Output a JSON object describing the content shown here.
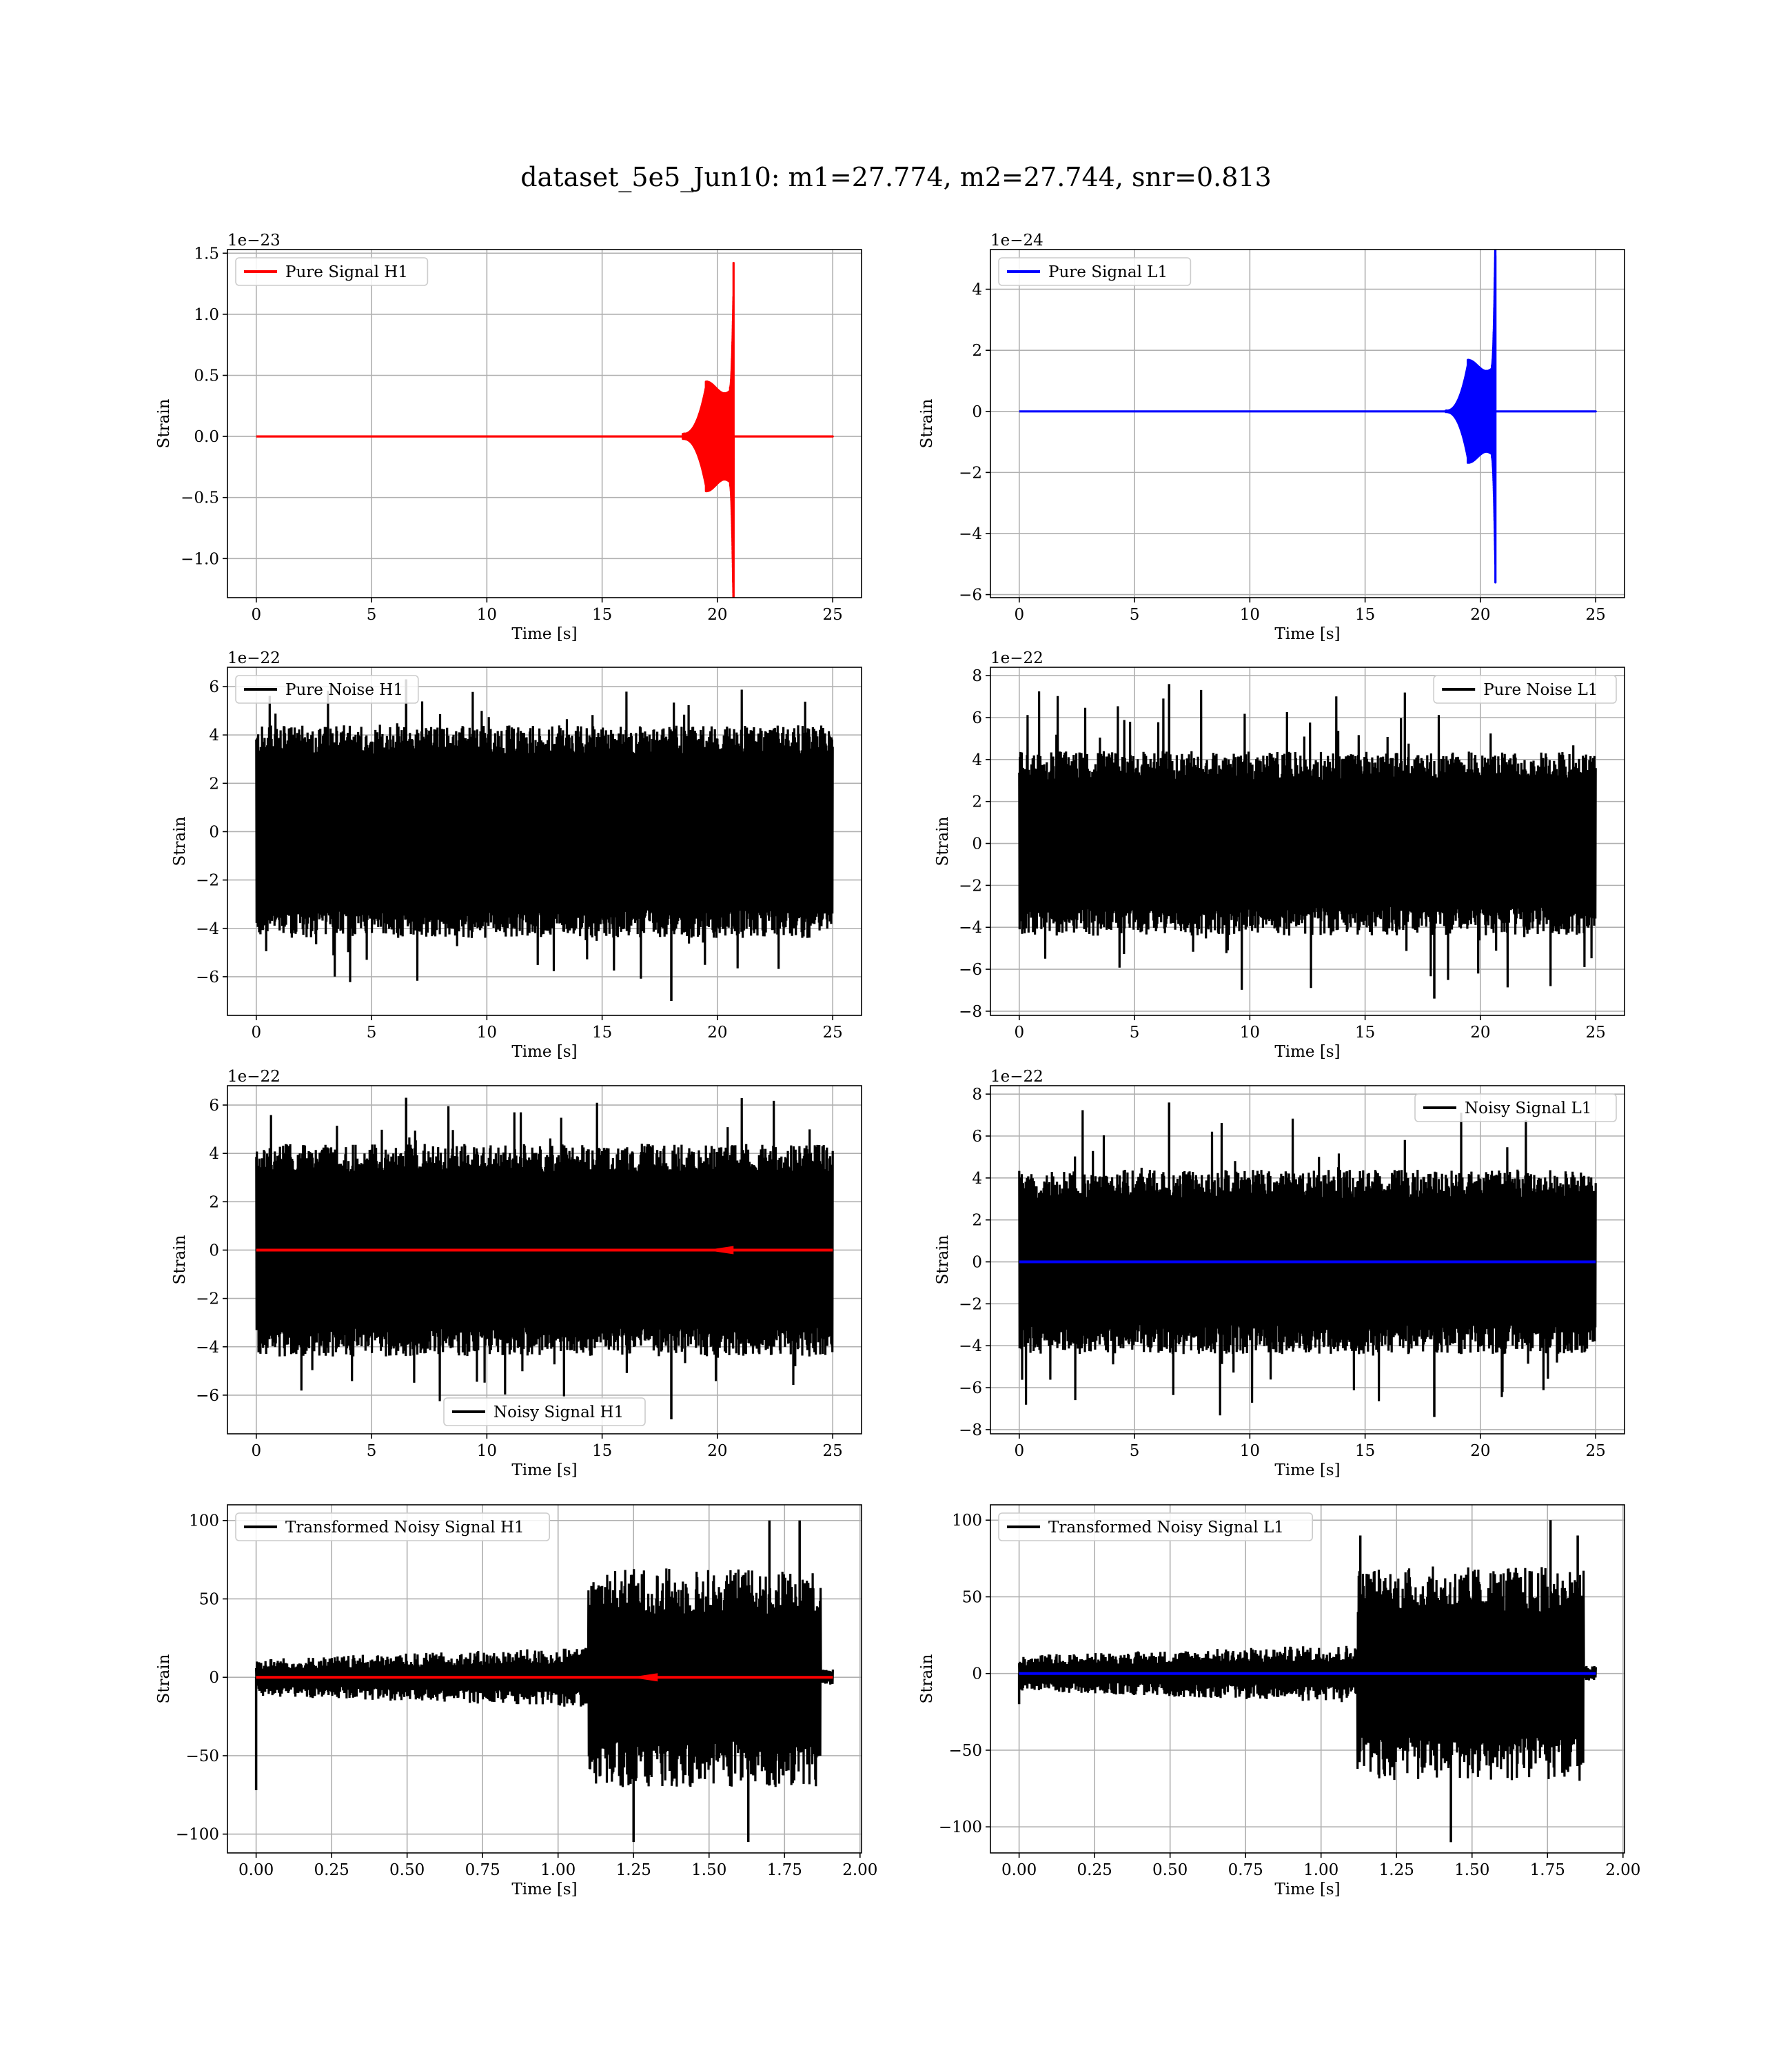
{
  "figure": {
    "suptitle": "dataset_5e5_Jun10: m1=27.774, m2=27.744, snr=0.813"
  },
  "chart_data": [
    {
      "id": "pure-signal-h1",
      "type": "line",
      "offset_text": "1e−23",
      "xlabel": "Time [s]",
      "ylabel": "Strain",
      "xlim": [
        -1.25,
        26.25
      ],
      "ylim": [
        -1.32,
        1.53
      ],
      "xticks": [
        0,
        5,
        10,
        15,
        20,
        25
      ],
      "xtick_labels": [
        "0",
        "5",
        "10",
        "15",
        "20",
        "25"
      ],
      "yticks": [
        -1.0,
        -0.5,
        0.0,
        0.5,
        1.0,
        1.5
      ],
      "ytick_labels": [
        "−1.0",
        "−0.5",
        "0.0",
        "0.5",
        "1.0",
        "1.5"
      ],
      "grid": true,
      "legend": {
        "placement": "upper left",
        "entries": [
          {
            "label": "Pure Signal H1",
            "color": "#ff0000"
          }
        ]
      },
      "series": [
        {
          "name": "Pure Signal H1",
          "color": "#ff0000",
          "kind": "chirp",
          "duration": 25,
          "merger": 20.7,
          "start": 18.5,
          "peak": 1.42,
          "trough": -1.2,
          "plateau": 0.4
        }
      ]
    },
    {
      "id": "pure-signal-l1",
      "type": "line",
      "offset_text": "1e−24",
      "xlabel": "Time [s]",
      "ylabel": "Strain",
      "xlim": [
        -1.25,
        26.25
      ],
      "ylim": [
        -6.1,
        5.3
      ],
      "xticks": [
        0,
        5,
        10,
        15,
        20,
        25
      ],
      "xtick_labels": [
        "0",
        "5",
        "10",
        "15",
        "20",
        "25"
      ],
      "yticks": [
        -6,
        -4,
        -2,
        0,
        2,
        4
      ],
      "ytick_labels": [
        "−6",
        "−4",
        "−2",
        "0",
        "2",
        "4"
      ],
      "grid": true,
      "legend": {
        "placement": "upper left",
        "entries": [
          {
            "label": "Pure Signal L1",
            "color": "#0000ff"
          }
        ]
      },
      "series": [
        {
          "name": "Pure Signal L1",
          "color": "#0000ff",
          "kind": "chirp",
          "duration": 25,
          "merger": 20.65,
          "start": 18.5,
          "peak": 5.1,
          "trough": -5.6,
          "plateau": 1.5
        }
      ]
    },
    {
      "id": "pure-noise-h1",
      "type": "line",
      "offset_text": "1e−22",
      "xlabel": "Time [s]",
      "ylabel": "Strain",
      "xlim": [
        -1.25,
        26.25
      ],
      "ylim": [
        -7.6,
        6.8
      ],
      "xticks": [
        0,
        5,
        10,
        15,
        20,
        25
      ],
      "xtick_labels": [
        "0",
        "5",
        "10",
        "15",
        "20",
        "25"
      ],
      "yticks": [
        -6,
        -4,
        -2,
        0,
        2,
        4,
        6
      ],
      "ytick_labels": [
        "−6",
        "−4",
        "−2",
        "0",
        "2",
        "4",
        "6"
      ],
      "grid": true,
      "legend": {
        "placement": "upper left",
        "entries": [
          {
            "label": "Pure Noise H1",
            "color": "#000000"
          }
        ]
      },
      "series": [
        {
          "name": "Pure Noise H1",
          "color": "#000000",
          "kind": "noise",
          "duration": 25,
          "center": 0,
          "core": 3.2,
          "env": 4.4,
          "max": 6.3,
          "min": -7.0
        }
      ]
    },
    {
      "id": "pure-noise-l1",
      "type": "line",
      "offset_text": "1e−22",
      "xlabel": "Time [s]",
      "ylabel": "Strain",
      "xlim": [
        -1.25,
        26.25
      ],
      "ylim": [
        -8.2,
        8.4
      ],
      "xticks": [
        0,
        5,
        10,
        15,
        20,
        25
      ],
      "xtick_labels": [
        "0",
        "5",
        "10",
        "15",
        "20",
        "25"
      ],
      "yticks": [
        -8,
        -6,
        -4,
        -2,
        0,
        2,
        4,
        6,
        8
      ],
      "ytick_labels": [
        "−8",
        "−6",
        "−4",
        "−2",
        "0",
        "2",
        "4",
        "6",
        "8"
      ],
      "grid": true,
      "legend": {
        "placement": "upper right",
        "entries": [
          {
            "label": "Pure Noise L1",
            "color": "#000000"
          }
        ]
      },
      "series": [
        {
          "name": "Pure Noise L1",
          "color": "#000000",
          "kind": "noise",
          "duration": 25,
          "center": 0,
          "core": 3.0,
          "env": 4.4,
          "max": 7.6,
          "min": -7.4
        }
      ]
    },
    {
      "id": "noisy-signal-h1",
      "type": "line",
      "offset_text": "1e−22",
      "xlabel": "Time [s]",
      "ylabel": "Strain",
      "xlim": [
        -1.25,
        26.25
      ],
      "ylim": [
        -7.6,
        6.8
      ],
      "xticks": [
        0,
        5,
        10,
        15,
        20,
        25
      ],
      "xtick_labels": [
        "0",
        "5",
        "10",
        "15",
        "20",
        "25"
      ],
      "yticks": [
        -6,
        -4,
        -2,
        0,
        2,
        4,
        6
      ],
      "ytick_labels": [
        "−6",
        "−4",
        "−2",
        "0",
        "2",
        "4",
        "6"
      ],
      "grid": true,
      "legend": {
        "placement": "lower center",
        "entries": [
          {
            "label": "Noisy Signal H1",
            "color": "#000000"
          }
        ]
      },
      "series": [
        {
          "name": "Noisy Signal H1",
          "color": "#000000",
          "kind": "noise",
          "duration": 25,
          "center": 0,
          "core": 3.2,
          "env": 4.4,
          "max": 6.3,
          "min": -7.0
        },
        {
          "color": "#ff0000",
          "kind": "flat",
          "duration": 25,
          "value": 0,
          "blip": 20.7
        }
      ]
    },
    {
      "id": "noisy-signal-l1",
      "type": "line",
      "offset_text": "1e−22",
      "xlabel": "Time [s]",
      "ylabel": "Strain",
      "xlim": [
        -1.25,
        26.25
      ],
      "ylim": [
        -8.2,
        8.4
      ],
      "xticks": [
        0,
        5,
        10,
        15,
        20,
        25
      ],
      "xtick_labels": [
        "0",
        "5",
        "10",
        "15",
        "20",
        "25"
      ],
      "yticks": [
        -8,
        -6,
        -4,
        -2,
        0,
        2,
        4,
        6,
        8
      ],
      "ytick_labels": [
        "−8",
        "−6",
        "−4",
        "−2",
        "0",
        "2",
        "4",
        "6",
        "8"
      ],
      "grid": true,
      "legend": {
        "placement": "upper right",
        "entries": [
          {
            "label": "Noisy Signal L1",
            "color": "#000000"
          }
        ]
      },
      "series": [
        {
          "name": "Noisy Signal L1",
          "color": "#000000",
          "kind": "noise",
          "duration": 25,
          "center": 0,
          "core": 3.0,
          "env": 4.4,
          "max": 7.6,
          "min": -7.4
        },
        {
          "color": "#0000ff",
          "kind": "flat",
          "duration": 25,
          "value": 0,
          "blip": null
        }
      ]
    },
    {
      "id": "transformed-noisy-signal-h1",
      "type": "line",
      "offset_text": "",
      "xlabel": "Time [s]",
      "ylabel": "Strain",
      "xlim": [
        -0.095,
        2.005
      ],
      "ylim": [
        -112,
        110
      ],
      "xticks": [
        0.0,
        0.25,
        0.5,
        0.75,
        1.0,
        1.25,
        1.5,
        1.75,
        2.0
      ],
      "xtick_labels": [
        "0.00",
        "0.25",
        "0.50",
        "0.75",
        "1.00",
        "1.25",
        "1.50",
        "1.75",
        "2.00"
      ],
      "yticks": [
        -100,
        -50,
        0,
        50,
        100
      ],
      "ytick_labels": [
        "−100",
        "−50",
        "0",
        "50",
        "100"
      ],
      "grid": true,
      "legend": {
        "placement": "upper left",
        "entries": [
          {
            "label": "Transformed Noisy Signal H1",
            "color": "#000000"
          }
        ]
      },
      "series": [
        {
          "name": "Transformed Noisy Signal H1",
          "color": "#000000",
          "kind": "transformed",
          "duration": 1.91,
          "split": 1.1,
          "cutoff": 1.87,
          "low_core": 5,
          "low_env": 12,
          "high_core": 40,
          "high_env": 70,
          "spikes": [
            [
              0.0,
              -72
            ],
            [
              1.25,
              -105
            ],
            [
              1.63,
              -105
            ],
            [
              1.7,
              100
            ],
            [
              1.8,
              100
            ]
          ]
        },
        {
          "color": "#ff0000",
          "kind": "flat",
          "duration": 1.91,
          "value": 0,
          "blip": 1.33
        }
      ]
    },
    {
      "id": "transformed-noisy-signal-l1",
      "type": "line",
      "offset_text": "",
      "xlabel": "Time [s]",
      "ylabel": "Strain",
      "xlim": [
        -0.095,
        2.005
      ],
      "ylim": [
        -117,
        110
      ],
      "xticks": [
        0.0,
        0.25,
        0.5,
        0.75,
        1.0,
        1.25,
        1.5,
        1.75,
        2.0
      ],
      "xtick_labels": [
        "0.00",
        "0.25",
        "0.50",
        "0.75",
        "1.00",
        "1.25",
        "1.50",
        "1.75",
        "2.00"
      ],
      "yticks": [
        -100,
        -50,
        0,
        50,
        100
      ],
      "ytick_labels": [
        "−100",
        "−50",
        "0",
        "50",
        "100"
      ],
      "grid": true,
      "legend": {
        "placement": "upper left",
        "entries": [
          {
            "label": "Transformed Noisy Signal L1",
            "color": "#000000"
          }
        ]
      },
      "series": [
        {
          "name": "Transformed Noisy Signal L1",
          "color": "#000000",
          "kind": "transformed",
          "duration": 1.91,
          "split": 1.12,
          "cutoff": 1.87,
          "low_core": 5,
          "low_env": 12,
          "high_core": 40,
          "high_env": 70,
          "spikes": [
            [
              0.0,
              -20
            ],
            [
              1.13,
              90
            ],
            [
              1.43,
              -110
            ],
            [
              1.76,
              100
            ],
            [
              1.85,
              90
            ]
          ]
        },
        {
          "color": "#0000ff",
          "kind": "flat",
          "duration": 1.91,
          "value": 0,
          "blip": null
        }
      ]
    }
  ]
}
